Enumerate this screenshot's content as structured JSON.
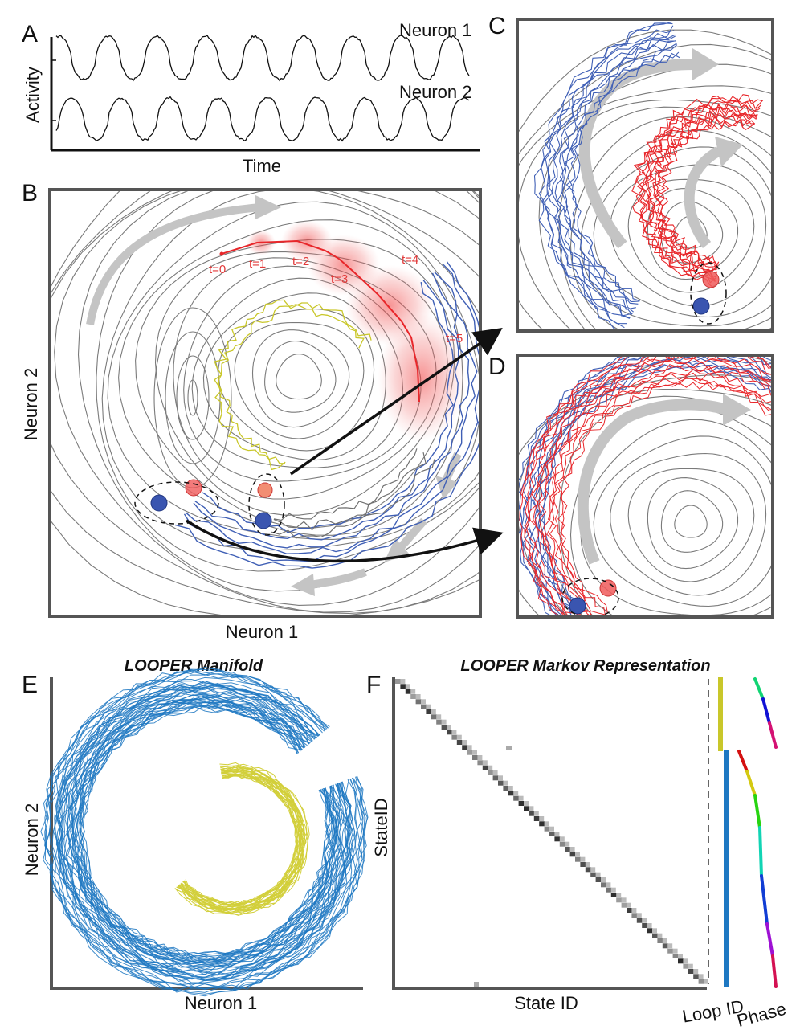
{
  "panels": {
    "a": {
      "letter": "A",
      "ylabel": "Activity",
      "xlabel": "Time",
      "trace1": "Neuron 1",
      "trace2": "Neuron 2"
    },
    "b": {
      "letter": "B",
      "xlabel": "Neuron 1",
      "ylabel": "Neuron 2",
      "time_labels": [
        "t=0",
        "t=1",
        "t=2",
        "t=3",
        "t=4",
        "t=5"
      ]
    },
    "c": {
      "letter": "C"
    },
    "d": {
      "letter": "D"
    },
    "e": {
      "letter": "E",
      "title": "LOOPER Manifold",
      "xlabel": "Neuron 1",
      "ylabel": "Neuron 2"
    },
    "f": {
      "letter": "F",
      "title": "LOOPER Markov Representation",
      "xlabel": "State ID",
      "ylabel": "StateID",
      "loop_label": "Loop ID",
      "phase_label": "Phase"
    }
  },
  "colors": {
    "blue_trajectory": "#3f5fb5",
    "red_trajectory": "#e8262a",
    "yellow_trajectory": "#c9c72a",
    "gray_trajectory": "#707070",
    "manifold_blue": "#1e78c2",
    "manifold_yellow": "#d2cf3a",
    "arrow_gray": "#c4c4c4"
  }
}
